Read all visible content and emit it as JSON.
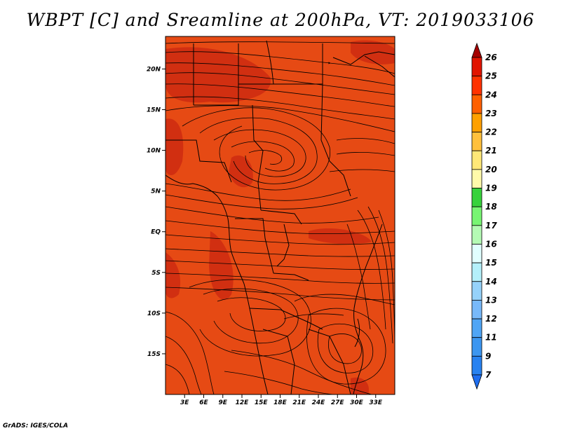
{
  "title": "WBPT [C] and Sreamline at 200hPa, VT: 2019033106",
  "footer": "GrADS: IGES/COLA",
  "map": {
    "lon_range": [
      0,
      36
    ],
    "lat_range": [
      -20,
      24
    ],
    "lon_ticks": [
      {
        "value": 3,
        "label": "3E"
      },
      {
        "value": 6,
        "label": "6E"
      },
      {
        "value": 9,
        "label": "9E"
      },
      {
        "value": 12,
        "label": "12E"
      },
      {
        "value": 15,
        "label": "15E"
      },
      {
        "value": 18,
        "label": "18E"
      },
      {
        "value": 21,
        "label": "21E"
      },
      {
        "value": 24,
        "label": "24E"
      },
      {
        "value": 27,
        "label": "27E"
      },
      {
        "value": 30,
        "label": "30E"
      },
      {
        "value": 33,
        "label": "33E"
      }
    ],
    "lat_ticks": [
      {
        "value": 20,
        "label": "20N"
      },
      {
        "value": 15,
        "label": "15N"
      },
      {
        "value": 10,
        "label": "10N"
      },
      {
        "value": 5,
        "label": "5N"
      },
      {
        "value": 0,
        "label": "EQ"
      },
      {
        "value": -5,
        "label": "5S"
      },
      {
        "value": -10,
        "label": "10S"
      },
      {
        "value": -15,
        "label": "15S"
      }
    ],
    "base_color": "#e64a14",
    "warm_color": "#c8230f"
  },
  "colorbar": {
    "levels": [
      "7",
      "9",
      "11",
      "12",
      "13",
      "14",
      "15",
      "16",
      "17",
      "18",
      "19",
      "20",
      "21",
      "22",
      "23",
      "24",
      "25",
      "26"
    ],
    "colors": [
      "#1e6ef0",
      "#2882f0",
      "#3c96f0",
      "#50a5f5",
      "#78b9fa",
      "#96d2fa",
      "#b4f0fa",
      "#e1ffff",
      "#b4fab4",
      "#78f573",
      "#37d23c",
      "#fffaaa",
      "#ffe878",
      "#ffc03c",
      "#ffa000",
      "#ff6000",
      "#ff3200",
      "#e11400",
      "#a50000"
    ]
  }
}
